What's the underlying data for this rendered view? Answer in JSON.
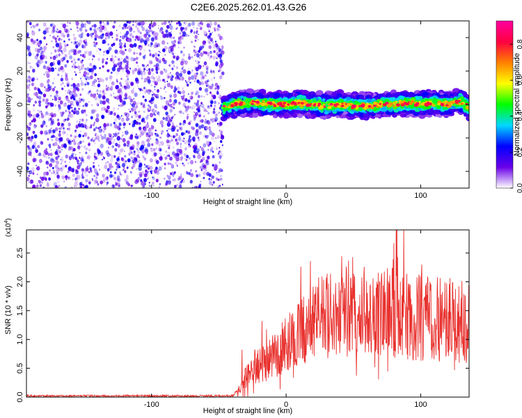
{
  "title": "C2E6.2025.262.01.43.G26",
  "chart_data": [
    {
      "type": "heatmap",
      "xlabel": "Height of straight line (km)",
      "ylabel": "Frequency (Hz)",
      "xlim": [
        -193,
        136
      ],
      "ylim": [
        -50,
        50
      ],
      "xticks": [
        -100,
        0,
        100
      ],
      "yticks": [
        -40,
        -20,
        0,
        20,
        40
      ],
      "xtick_labels": [
        "-100",
        "0",
        "100"
      ],
      "ytick_labels": [
        "-40",
        "-20",
        "0",
        "20",
        "40"
      ],
      "noise_region": {
        "x_from": -193,
        "x_to": -47,
        "y_from": -50,
        "y_to": 50,
        "level": 0.1
      },
      "signal_band": {
        "x_from": -47,
        "x_to": 136,
        "center_x": [
          -47,
          -40,
          -30,
          -20,
          -10,
          0,
          10,
          20,
          30,
          40,
          50,
          60,
          70,
          80,
          90,
          100,
          110,
          120,
          130,
          136
        ],
        "center_freq": [
          -2,
          0,
          1,
          1,
          0,
          0,
          1,
          0,
          -1,
          0,
          -1,
          -1,
          0,
          0,
          1,
          0,
          1,
          0,
          2,
          -2
        ],
        "width": 7,
        "level": 0.6
      },
      "colorbar": {
        "label": "Normalized spectral amplitude",
        "range": [
          0,
          0.93
        ],
        "ticks": [
          0.0,
          0.2,
          0.4,
          0.6,
          0.8
        ],
        "tick_labels": [
          "0.0",
          "0.2",
          "0.4",
          "0.6",
          "0.8"
        ],
        "colors": [
          "#ffffff",
          "#6a00e8",
          "#0000ff",
          "#00d8ff",
          "#00ff00",
          "#ffff00",
          "#ff8000",
          "#ff0040",
          "#ff00a0"
        ]
      }
    },
    {
      "type": "line",
      "xlabel": "Height of straight line (km)",
      "ylabel": "SNR (10 * v/v)",
      "y_multiplier": "(x10",
      "y_multiplier_exp": "4",
      "y_multiplier_close": ")",
      "xlim": [
        -193,
        136
      ],
      "ylim": [
        0,
        2.9
      ],
      "xticks": [
        -100,
        0,
        100
      ],
      "yticks": [
        0.0,
        0.5,
        1.0,
        1.5,
        2.0,
        2.5
      ],
      "xtick_labels": [
        "-100",
        "0",
        "100"
      ],
      "ytick_labels": [
        "0.0",
        "0.5",
        "1.0",
        "1.5",
        "2.0",
        "2.5"
      ],
      "color": "#e8312e",
      "envelope": {
        "x": [
          -193,
          -40,
          -34,
          -30,
          -25,
          -20,
          -15,
          -10,
          -5,
          0,
          5,
          10,
          15,
          20,
          25,
          30,
          40,
          50,
          60,
          70,
          80,
          90,
          100,
          110,
          120,
          130,
          136
        ],
        "y": [
          0.02,
          0.02,
          0.15,
          0.35,
          0.45,
          0.55,
          0.6,
          0.7,
          0.8,
          0.9,
          1.0,
          1.1,
          1.2,
          1.3,
          1.35,
          1.4,
          1.4,
          1.45,
          1.5,
          1.45,
          1.45,
          1.4,
          1.4,
          1.35,
          1.35,
          1.3,
          1.3
        ]
      }
    }
  ]
}
